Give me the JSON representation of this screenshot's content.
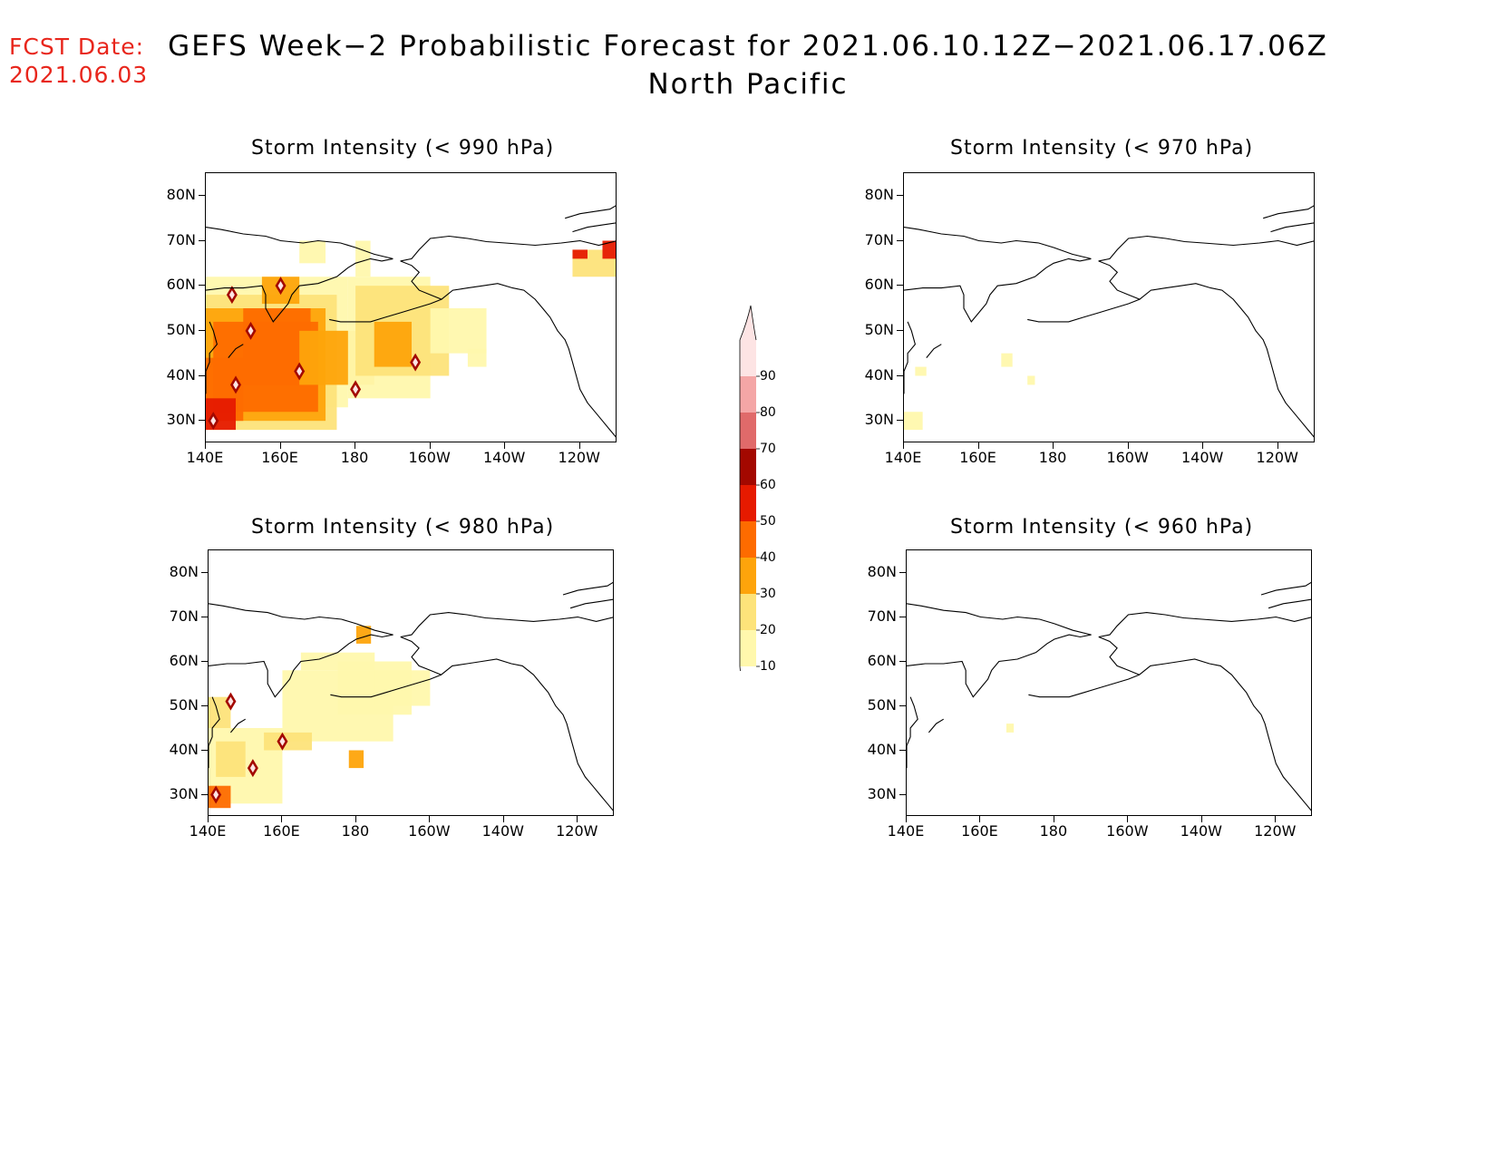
{
  "header": {
    "fcst_label": "FCST Date:",
    "fcst_date": "2021.06.03",
    "title_line1": "GEFS Week−2 Probabilistic Forecast for 2021.06.10.12Z−2021.06.17.06Z",
    "title_line2": "North Pacific"
  },
  "panels": [
    {
      "id": "p990",
      "title": "Storm Intensity (< 990 hPa)"
    },
    {
      "id": "p970",
      "title": "Storm Intensity (< 970 hPa)"
    },
    {
      "id": "p980",
      "title": "Storm Intensity (< 980 hPa)"
    },
    {
      "id": "p960",
      "title": "Storm Intensity (< 960 hPa)"
    }
  ],
  "axes": {
    "lat_labels": [
      "80N",
      "70N",
      "60N",
      "50N",
      "40N",
      "30N"
    ],
    "lat_values": [
      80,
      70,
      60,
      50,
      40,
      30
    ],
    "lon_labels": [
      "140E",
      "160E",
      "180",
      "160W",
      "140W",
      "120W"
    ],
    "lon_values": [
      140,
      160,
      180,
      200,
      220,
      240
    ],
    "lat_range": [
      25,
      85
    ],
    "lon_range": [
      140,
      250
    ]
  },
  "colorbar": {
    "levels": [
      "10",
      "20",
      "30",
      "40",
      "50",
      "60",
      "70",
      "80",
      "90"
    ],
    "colors": [
      "#fff8ad",
      "#fde37a",
      "#fea40b",
      "#fe6b00",
      "#e61a00",
      "#a30800",
      "#e06a6a",
      "#f4a6a6",
      "#fde4e4"
    ]
  }
}
